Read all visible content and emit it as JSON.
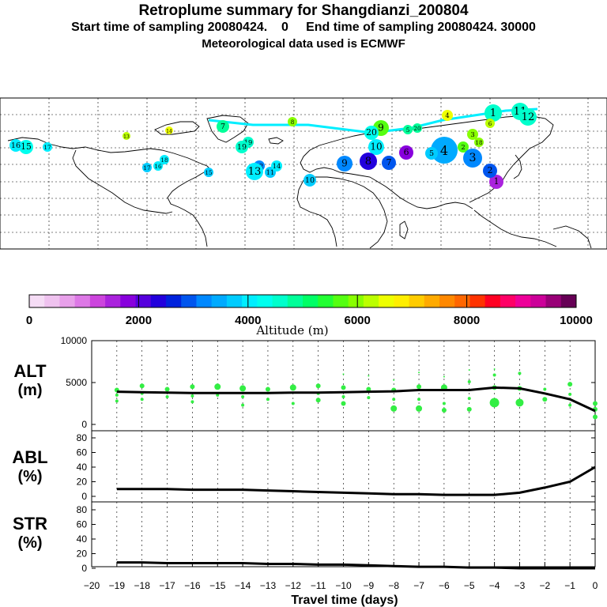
{
  "header": {
    "title": "Retroplume summary for Shangdianzi_200804",
    "line2": "Start time of sampling 20080424.    0     End time of sampling 20080424. 30000",
    "line3": "Meteorological data used is ECMWF"
  },
  "colors": {
    "palette": [
      "#f5dcf5",
      "#efc2ef",
      "#e8a0ea",
      "#dd78e6",
      "#cc44dd",
      "#aa22dd",
      "#8800dd",
      "#5500dd",
      "#2200dd",
      "#0022dd",
      "#0055ee",
      "#0088ff",
      "#00aaff",
      "#00ccff",
      "#00eeff",
      "#00ffee",
      "#00ffcc",
      "#00ff99",
      "#00ff66",
      "#22ff33",
      "#55ff11",
      "#88ff00",
      "#bbff00",
      "#eeff00",
      "#ffee00",
      "#ffcc00",
      "#ffaa00",
      "#ff8800",
      "#ff6600",
      "#ff3300",
      "#ff0022",
      "#ff0066",
      "#ee0099",
      "#cc0099",
      "#990077",
      "#660055"
    ],
    "scatter": "#33ee44",
    "line": "#000000"
  },
  "colorbar": {
    "label": "Altitude (m)",
    "ticks": [
      "0",
      "2000",
      "4000",
      "6000",
      "8000",
      "10000"
    ]
  },
  "map": {
    "track": [
      {
        "label": "1",
        "c": "#aa22dd"
      },
      {
        "label": "2",
        "c": "#0055ee"
      },
      {
        "label": "3",
        "c": "#0088ff"
      },
      {
        "label": "4",
        "c": "#00aaff"
      },
      {
        "label": "5",
        "c": "#00ccff"
      },
      {
        "label": "6",
        "c": "#8800dd"
      },
      {
        "label": "7",
        "c": "#0055ee"
      },
      {
        "label": "8",
        "c": "#2200dd"
      },
      {
        "label": "9",
        "c": "#0088ff"
      },
      {
        "label": "10",
        "c": "#00ccff"
      },
      {
        "label": "11",
        "c": "#00ccff"
      },
      {
        "label": "12",
        "c": "#0088ff"
      },
      {
        "label": "13",
        "c": "#00eeff"
      },
      {
        "label": "14",
        "c": "#00eeff"
      },
      {
        "label": "15",
        "c": "#00ccff"
      },
      {
        "label": "16",
        "c": "#00eeff"
      },
      {
        "label": "17",
        "c": "#00ccff"
      },
      {
        "label": "18",
        "c": "#00eeff"
      },
      {
        "label": "19",
        "c": "#00ffcc"
      },
      {
        "label": "20",
        "c": "#00ffee"
      }
    ],
    "upper": [
      {
        "label": "1",
        "c": "#00ffcc"
      },
      {
        "label": "2",
        "c": "#55ff11"
      },
      {
        "label": "3",
        "c": "#88ff00"
      },
      {
        "label": "4",
        "c": "#eeff00"
      },
      {
        "label": "5",
        "c": "#00ff99"
      },
      {
        "label": "6",
        "c": "#bbff00"
      },
      {
        "label": "7",
        "c": "#00ff99"
      },
      {
        "label": "8",
        "c": "#88ff00"
      },
      {
        "label": "9",
        "c": "#55ff11"
      },
      {
        "label": "10",
        "c": "#00eeff"
      },
      {
        "label": "11",
        "c": "#00ffcc"
      },
      {
        "label": "12",
        "c": "#00ffcc"
      },
      {
        "label": "13",
        "c": "#bbff00"
      },
      {
        "label": "14",
        "c": "#eeff00"
      },
      {
        "label": "15",
        "c": "#00ffee"
      },
      {
        "label": "16",
        "c": "#00eeff"
      },
      {
        "label": "17",
        "c": "#00eeff"
      },
      {
        "label": "18",
        "c": "#88ff00"
      },
      {
        "label": "19",
        "c": "#00ffcc"
      },
      {
        "label": "20",
        "c": "#00ff99"
      }
    ]
  },
  "panels": {
    "alt": {
      "label": "ALT",
      "unit": "(m)"
    },
    "abl": {
      "label": "ABL",
      "unit": "(%)"
    },
    "str": {
      "label": "STR",
      "unit": "(%)"
    }
  },
  "xaxis": {
    "title": "Travel time (days)",
    "ticks": [
      "−20",
      "−19",
      "−18",
      "−17",
      "−16",
      "−15",
      "−14",
      "−13",
      "−12",
      "−11",
      "−10",
      "−9",
      "−8",
      "−7",
      "−6",
      "−5",
      "−4",
      "−3",
      "−2",
      "−1",
      "0"
    ]
  },
  "chart_data": [
    {
      "type": "line",
      "title": "ALT",
      "ylabel": "(m)",
      "xlabel": "Travel time (days)",
      "xlim": [
        -20,
        0
      ],
      "ylim": [
        0,
        10000
      ],
      "yticks": [
        "0",
        "5000",
        "10000"
      ],
      "x": [
        -19,
        -18,
        -17,
        -16,
        -15,
        -14,
        -13,
        -12,
        -11,
        -10,
        -9,
        -8,
        -7,
        -6,
        -5,
        -4,
        -3,
        -2,
        -1,
        0
      ],
      "values": [
        3900,
        3850,
        3800,
        3750,
        3750,
        3750,
        3750,
        3800,
        3800,
        3850,
        3900,
        3950,
        4100,
        4100,
        4100,
        4400,
        4300,
        3700,
        3000,
        1600
      ],
      "scatter": [
        [
          -19,
          4100,
          3
        ],
        [
          -19,
          3500,
          2
        ],
        [
          -19,
          2800,
          2
        ],
        [
          -18,
          4600,
          3
        ],
        [
          -18,
          3700,
          2
        ],
        [
          -18,
          3000,
          2
        ],
        [
          -17,
          4200,
          3
        ],
        [
          -17,
          3300,
          2
        ],
        [
          -16,
          4500,
          3
        ],
        [
          -16,
          3400,
          2
        ],
        [
          -16,
          2700,
          2
        ],
        [
          -15,
          4500,
          4
        ],
        [
          -15,
          3500,
          2
        ],
        [
          -14,
          4300,
          4
        ],
        [
          -14,
          3300,
          2
        ],
        [
          -14,
          2300,
          2
        ],
        [
          -13,
          4200,
          3
        ],
        [
          -13,
          3000,
          2
        ],
        [
          -12,
          4400,
          4
        ],
        [
          -12,
          2500,
          2
        ],
        [
          -11,
          4600,
          3
        ],
        [
          -11,
          3700,
          2
        ],
        [
          -11,
          2900,
          3
        ],
        [
          -10,
          6000,
          1
        ],
        [
          -10,
          4400,
          3
        ],
        [
          -10,
          3300,
          2
        ],
        [
          -10,
          2500,
          3
        ],
        [
          -9,
          5800,
          1
        ],
        [
          -9,
          4200,
          3
        ],
        [
          -9,
          3200,
          2
        ],
        [
          -8,
          5300,
          1
        ],
        [
          -8,
          4100,
          3
        ],
        [
          -8,
          3000,
          2
        ],
        [
          -8,
          1900,
          4
        ],
        [
          -7,
          6200,
          1
        ],
        [
          -7,
          4500,
          3
        ],
        [
          -7,
          3000,
          2
        ],
        [
          -7,
          1900,
          4
        ],
        [
          -6,
          5700,
          1
        ],
        [
          -6,
          4400,
          4
        ],
        [
          -6,
          2500,
          2
        ],
        [
          -6,
          1700,
          3
        ],
        [
          -5,
          6500,
          1
        ],
        [
          -5,
          5100,
          2
        ],
        [
          -5,
          3100,
          2
        ],
        [
          -5,
          1800,
          3
        ],
        [
          -4,
          6600,
          1
        ],
        [
          -4,
          5900,
          2
        ],
        [
          -4,
          4400,
          3
        ],
        [
          -4,
          2600,
          6
        ],
        [
          -3,
          6100,
          2
        ],
        [
          -3,
          4300,
          3
        ],
        [
          -3,
          2600,
          5
        ],
        [
          -2,
          4200,
          2
        ],
        [
          -2,
          3000,
          3
        ],
        [
          -1,
          4800,
          3
        ],
        [
          -1,
          3600,
          2
        ],
        [
          -1,
          2300,
          2
        ],
        [
          0,
          2500,
          3
        ],
        [
          0,
          1800,
          3
        ],
        [
          0,
          900,
          3
        ]
      ]
    },
    {
      "type": "line",
      "title": "ABL",
      "ylabel": "(%)",
      "xlabel": "Travel time (days)",
      "xlim": [
        -20,
        0
      ],
      "ylim": [
        0,
        90
      ],
      "yticks": [
        "0",
        "20",
        "40",
        "60",
        "80"
      ],
      "x": [
        -19,
        -18,
        -17,
        -16,
        -15,
        -14,
        -13,
        -12,
        -11,
        -10,
        -9,
        -8,
        -7,
        -6,
        -5,
        -4,
        -3,
        -2,
        -1,
        0
      ],
      "values": [
        10,
        10,
        10,
        9,
        9,
        9,
        8,
        7,
        6,
        5,
        4,
        3,
        3,
        2,
        2,
        2,
        5,
        12,
        20,
        40
      ]
    },
    {
      "type": "line",
      "title": "STR",
      "ylabel": "(%)",
      "xlabel": "Travel time (days)",
      "xlim": [
        -20,
        0
      ],
      "ylim": [
        0,
        90
      ],
      "yticks": [
        "0",
        "20",
        "40",
        "60",
        "80"
      ],
      "x": [
        -19,
        -18,
        -17,
        -16,
        -15,
        -14,
        -13,
        -12,
        -11,
        -10,
        -9,
        -8,
        -7,
        -6,
        -5,
        -4,
        -3,
        -2,
        -1,
        0
      ],
      "values": [
        8,
        8,
        7,
        7,
        7,
        7,
        6,
        6,
        5,
        5,
        4,
        3,
        2,
        2,
        1,
        1,
        0,
        0,
        0,
        0
      ]
    }
  ]
}
